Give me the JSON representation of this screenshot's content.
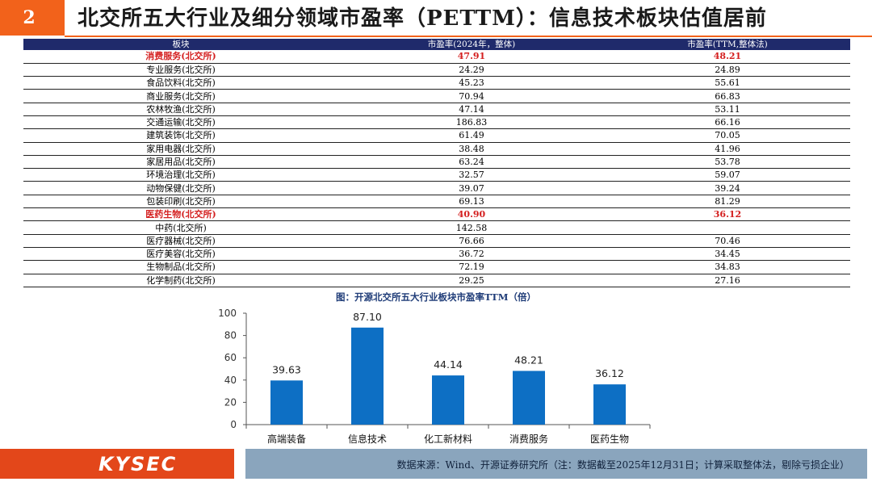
{
  "header": {
    "number": "2",
    "title": "北交所五大行业及细分领域市盈率（PETTM）：信息技术板块估值居前",
    "accent_color": "#f2621b"
  },
  "table": {
    "headers": [
      "板块",
      "市盈率(2024年，整体)",
      "市盈率(TTM,整体法)"
    ],
    "rows": [
      {
        "name": "消费服务(北交所)",
        "pe2024": "47.91",
        "pettm": "48.21",
        "highlight": true
      },
      {
        "name": "专业服务(北交所)",
        "pe2024": "24.29",
        "pettm": "24.89",
        "highlight": false
      },
      {
        "name": "食品饮料(北交所)",
        "pe2024": "45.23",
        "pettm": "55.61",
        "highlight": false
      },
      {
        "name": "商业服务(北交所)",
        "pe2024": "70.94",
        "pettm": "66.83",
        "highlight": false
      },
      {
        "name": "农林牧渔(北交所)",
        "pe2024": "47.14",
        "pettm": "53.11",
        "highlight": false
      },
      {
        "name": "交通运输(北交所)",
        "pe2024": "186.83",
        "pettm": "66.16",
        "highlight": false
      },
      {
        "name": "建筑装饰(北交所)",
        "pe2024": "61.49",
        "pettm": "70.05",
        "highlight": false
      },
      {
        "name": "家用电器(北交所)",
        "pe2024": "38.48",
        "pettm": "41.96",
        "highlight": false
      },
      {
        "name": "家居用品(北交所)",
        "pe2024": "63.24",
        "pettm": "53.78",
        "highlight": false
      },
      {
        "name": "环境治理(北交所)",
        "pe2024": "32.57",
        "pettm": "59.07",
        "highlight": false
      },
      {
        "name": "动物保健(北交所)",
        "pe2024": "39.07",
        "pettm": "39.24",
        "highlight": false
      },
      {
        "name": "包装印刷(北交所)",
        "pe2024": "69.13",
        "pettm": "81.29",
        "highlight": false
      },
      {
        "name": "医药生物(北交所)",
        "pe2024": "40.90",
        "pettm": "36.12",
        "highlight": true
      },
      {
        "name": "中药(北交所)",
        "pe2024": "142.58",
        "pettm": "",
        "highlight": false
      },
      {
        "name": "医疗器械(北交所)",
        "pe2024": "76.66",
        "pettm": "70.46",
        "highlight": false
      },
      {
        "name": "医疗美容(北交所)",
        "pe2024": "36.72",
        "pettm": "34.45",
        "highlight": false
      },
      {
        "name": "生物制品(北交所)",
        "pe2024": "72.19",
        "pettm": "34.83",
        "highlight": false
      },
      {
        "name": "化学制药(北交所)",
        "pe2024": "29.25",
        "pettm": "27.16",
        "highlight": false
      }
    ]
  },
  "chart_title": "图：开源北交所五大行业板块市盈率TTM（倍）",
  "chart_data": {
    "type": "bar",
    "title": "图：开源北交所五大行业板块市盈率TTM（倍）",
    "categories": [
      "高端装备",
      "信息技术",
      "化工新材料",
      "消费服务",
      "医药生物"
    ],
    "values": [
      39.63,
      87.1,
      44.14,
      48.21,
      36.12
    ],
    "value_labels": [
      "39.63",
      "87.10",
      "44.14",
      "48.21",
      "36.12"
    ],
    "ylim": [
      0,
      100
    ],
    "yticks": [
      0,
      20,
      40,
      60,
      80,
      100
    ],
    "ytick_labels": [
      "0",
      "20",
      "40",
      "60",
      "80",
      "100"
    ],
    "bar_color": "#0d6fc4",
    "grid": false,
    "xlabel": "",
    "ylabel": ""
  },
  "footer": {
    "logo": "KYSEC",
    "source": "数据来源：Wind、开源证券研究所（注：数据截至2025年12月31日；计算采取整体法，剔除亏损企业）"
  }
}
